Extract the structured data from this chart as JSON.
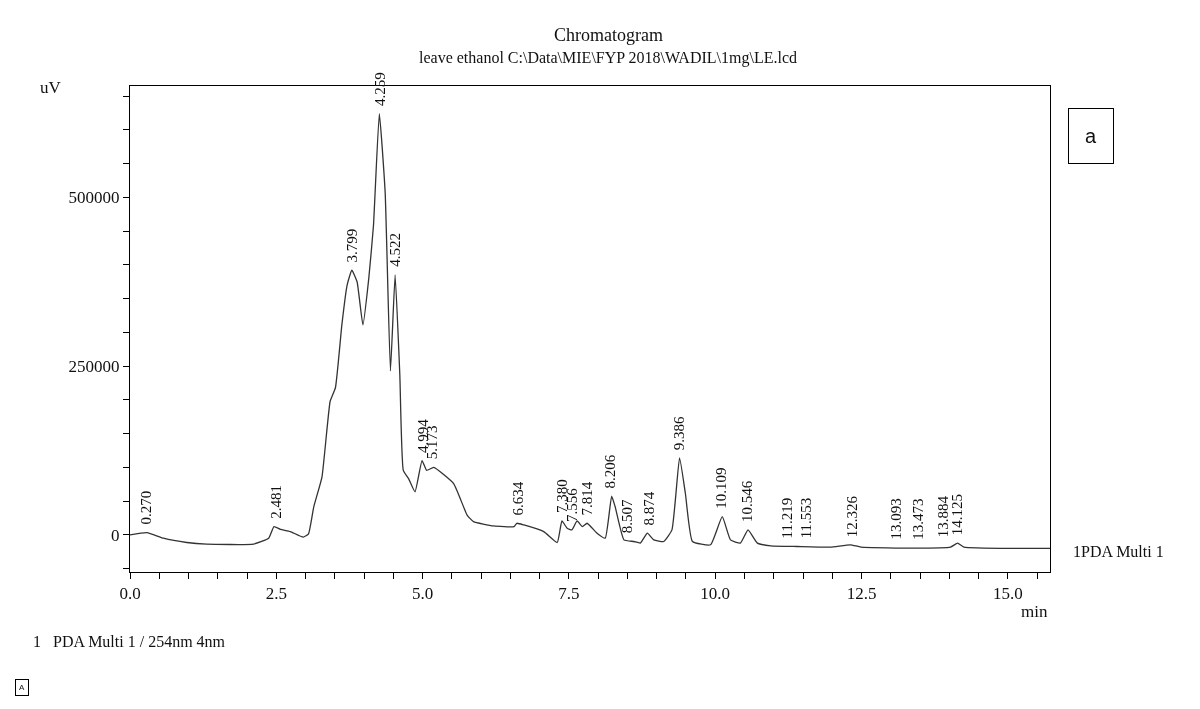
{
  "chart_data": {
    "type": "line",
    "title": "Chromatogram",
    "subtitle": "leave ethanol C:\\Data\\MIE\\FYP 2018\\WADIL\\1mg\\LE.lcd",
    "xlabel": "min",
    "ylabel": "uV",
    "x": [
      0,
      0.29,
      0.57,
      0.97,
      1.31,
      2.11,
      2.37,
      2.46,
      2.57,
      2.74,
      2.96,
      3.05,
      3.14,
      3.28,
      3.42,
      3.51,
      3.62,
      3.71,
      3.79,
      3.88,
      3.98,
      4.08,
      4.16,
      4.26,
      4.36,
      4.45,
      4.53,
      4.61,
      4.67,
      4.76,
      4.87,
      4.99,
      5.07,
      5.19,
      5.53,
      5.76,
      5.87,
      6.21,
      6.56,
      6.61,
      6.73,
      7.07,
      7.3,
      7.38,
      7.47,
      7.55,
      7.64,
      7.73,
      7.81,
      7.98,
      8.12,
      8.23,
      8.29,
      8.44,
      8.61,
      8.72,
      8.84,
      8.95,
      9.12,
      9.26,
      9.39,
      9.49,
      9.61,
      9.92,
      10.12,
      10.26,
      10.43,
      10.56,
      10.72,
      10.95,
      11.4,
      11.97,
      12.31,
      12.49,
      13.4,
      14.02,
      14.14,
      14.25,
      15.11,
      15.72
    ],
    "series": [
      {
        "color": "#333333",
        "values": [
          0,
          3400,
          -4900,
          -11300,
          -13700,
          -13700,
          -4900,
          12200,
          8300,
          4900,
          -3400,
          1500,
          41600,
          85700,
          198000,
          218000,
          311000,
          370000,
          392000,
          375000,
          311000,
          380000,
          458000,
          624000,
          507000,
          243000,
          385000,
          238000,
          95600,
          83300,
          63700,
          110000,
          95600,
          100000,
          76000,
          29400,
          19600,
          13200,
          12200,
          17200,
          14700,
          4900,
          -11300,
          20600,
          9800,
          7400,
          20600,
          12200,
          17200,
          2500,
          -4900,
          57300,
          41600,
          -7400,
          -9800,
          -12200,
          2500,
          -7400,
          -9800,
          7400,
          114000,
          61300,
          -9800,
          -14700,
          26900,
          -7400,
          -12200,
          7400,
          -12200,
          -16200,
          -17200,
          -18100,
          -14700,
          -18100,
          -19600,
          -18100,
          -12200,
          -18100,
          -20100,
          -20100
        ]
      }
    ],
    "xlim": [
      0,
      15.72
    ],
    "ylim": [
      -55000,
      665000
    ],
    "xticks": [
      {
        "value": 0,
        "label": "0.0"
      },
      {
        "value": 0.5,
        "label": null
      },
      {
        "value": 1,
        "label": null
      },
      {
        "value": 1.5,
        "label": null
      },
      {
        "value": 2,
        "label": null
      },
      {
        "value": 2.5,
        "label": "2.5"
      },
      {
        "value": 3,
        "label": null
      },
      {
        "value": 3.5,
        "label": null
      },
      {
        "value": 4,
        "label": null
      },
      {
        "value": 4.5,
        "label": null
      },
      {
        "value": 5,
        "label": "5.0"
      },
      {
        "value": 5.5,
        "label": null
      },
      {
        "value": 6,
        "label": null
      },
      {
        "value": 6.5,
        "label": null
      },
      {
        "value": 7,
        "label": null
      },
      {
        "value": 7.5,
        "label": "7.5"
      },
      {
        "value": 8,
        "label": null
      },
      {
        "value": 8.5,
        "label": null
      },
      {
        "value": 9,
        "label": null
      },
      {
        "value": 9.5,
        "label": null
      },
      {
        "value": 10,
        "label": "10.0"
      },
      {
        "value": 10.5,
        "label": null
      },
      {
        "value": 11,
        "label": null
      },
      {
        "value": 11.5,
        "label": null
      },
      {
        "value": 12,
        "label": null
      },
      {
        "value": 12.5,
        "label": "12.5"
      },
      {
        "value": 13,
        "label": null
      },
      {
        "value": 13.5,
        "label": null
      },
      {
        "value": 14,
        "label": null
      },
      {
        "value": 14.5,
        "label": null
      },
      {
        "value": 15,
        "label": "15.0"
      },
      {
        "value": 15.5,
        "label": null
      }
    ],
    "yticks": [
      {
        "value": -50000,
        "label": null
      },
      0,
      {
        "value": 50000,
        "label": null
      },
      {
        "value": 100000,
        "label": null
      },
      {
        "value": 150000,
        "label": null
      },
      {
        "value": 200000,
        "label": null
      },
      250000,
      {
        "value": 300000,
        "label": null
      },
      {
        "value": 350000,
        "label": null
      },
      {
        "value": 400000,
        "label": null
      },
      {
        "value": 450000,
        "label": null
      },
      500000,
      {
        "value": 550000,
        "label": null
      },
      {
        "value": 600000,
        "label": null
      },
      {
        "value": 650000,
        "label": null
      }
    ],
    "marker": "none",
    "line_style": "solid",
    "annotations": [
      {
        "text": "0.270",
        "x": 0.27,
        "y": 3400
      },
      {
        "text": "2.481",
        "x": 2.481,
        "y": 12200
      },
      {
        "text": "3.799",
        "x": 3.799,
        "y": 392000
      },
      {
        "text": "4.259",
        "x": 4.259,
        "y": 624000
      },
      {
        "text": "4.522",
        "x": 4.522,
        "y": 385000
      },
      {
        "text": "4.994",
        "x": 4.994,
        "y": 110000
      },
      {
        "text": "5.173",
        "x": 5.173,
        "y": 100000
      },
      {
        "text": "6.634",
        "x": 6.634,
        "y": 17200
      },
      {
        "text": "7.380",
        "x": 7.38,
        "y": 20600
      },
      {
        "text": "7.556",
        "x": 7.556,
        "y": 7400
      },
      {
        "text": "7.814",
        "x": 7.814,
        "y": 17200
      },
      {
        "text": "8.206",
        "x": 8.206,
        "y": 57300
      },
      {
        "text": "8.507",
        "x": 8.507,
        "y": -9800
      },
      {
        "text": "8.874",
        "x": 8.874,
        "y": 2500
      },
      {
        "text": "9.386",
        "x": 9.386,
        "y": 114000
      },
      {
        "text": "10.109",
        "x": 10.109,
        "y": 26900
      },
      {
        "text": "10.546",
        "x": 10.546,
        "y": 7400
      },
      {
        "text": "11.219",
        "x": 11.219,
        "y": -17000
      },
      {
        "text": "11.553",
        "x": 11.553,
        "y": -17500
      },
      {
        "text": "12.326",
        "x": 12.326,
        "y": -14700
      },
      {
        "text": "13.093",
        "x": 13.093,
        "y": -19000
      },
      {
        "text": "13.473",
        "x": 13.473,
        "y": -19000
      },
      {
        "text": "13.884",
        "x": 13.884,
        "y": -16000
      },
      {
        "text": "14.125",
        "x": 14.125,
        "y": -12200
      },
      "1PDA Multi 1",
      "1   PDA Multi 1 / 254nm 4nm",
      "a",
      "A"
    ]
  }
}
